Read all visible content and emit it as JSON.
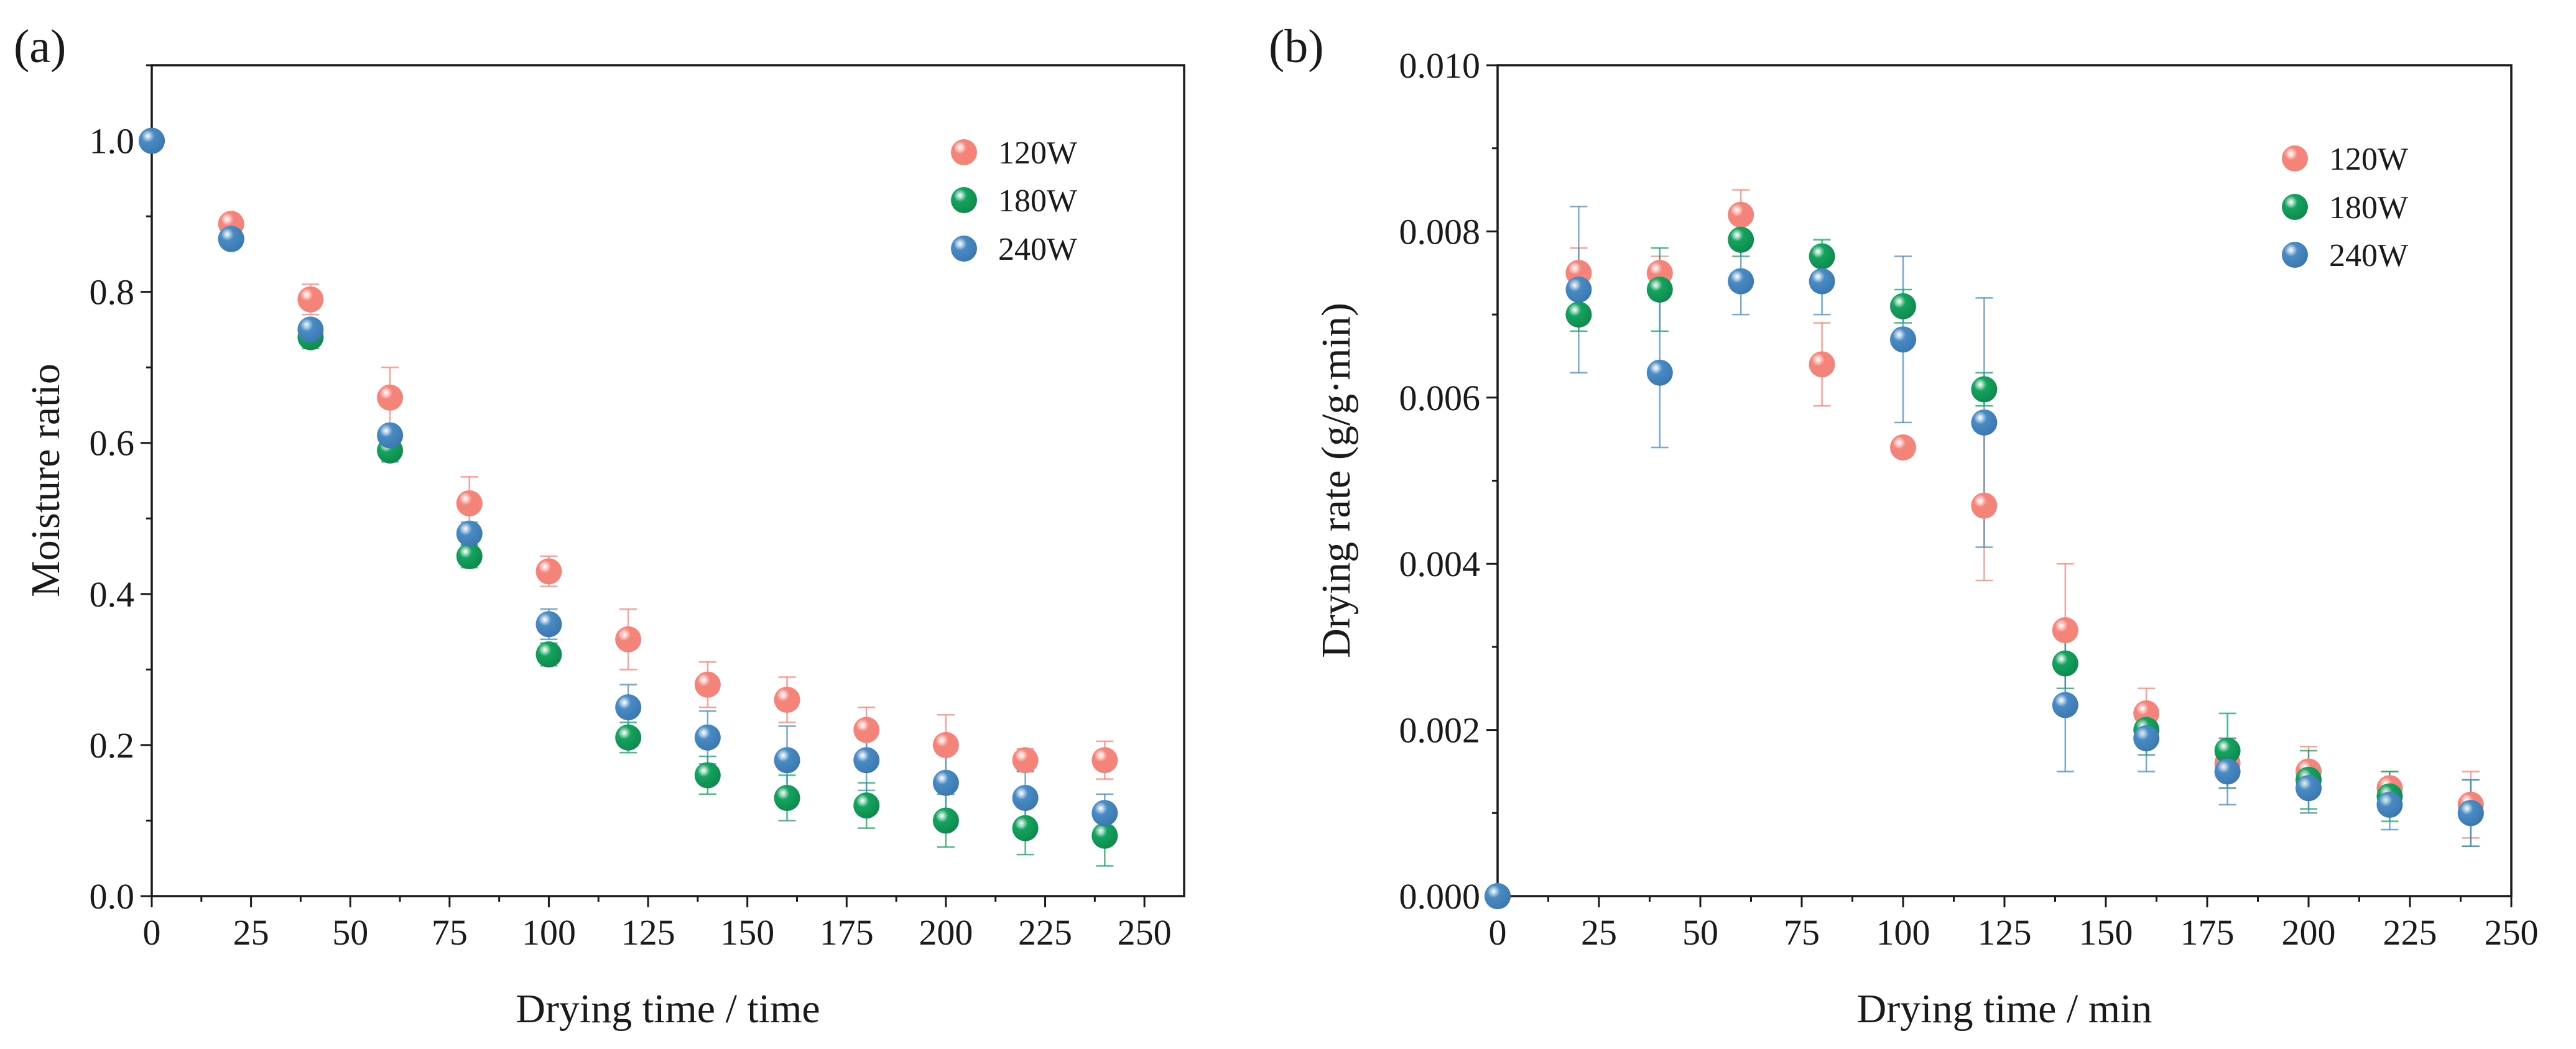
{
  "chart_data": [
    {
      "type": "scatter",
      "panel_label": "(a)",
      "title": "",
      "xlabel": "Drying time / time",
      "ylabel": "Moisture ratio",
      "xlim": [
        0,
        260
      ],
      "ylim": [
        0,
        1.1
      ],
      "xticks": [
        0,
        25,
        50,
        75,
        100,
        125,
        150,
        175,
        200,
        225,
        250
      ],
      "xtick_labels": [
        "0",
        "25",
        "50",
        "75",
        "100",
        "125",
        "150",
        "175",
        "200",
        "225",
        "250"
      ],
      "yticks": [
        0.0,
        0.2,
        0.4,
        0.6,
        0.8,
        1.0
      ],
      "ytick_labels": [
        "0.0",
        "0.2",
        "0.4",
        "0.6",
        "0.8",
        "1.0"
      ],
      "grid": false,
      "legend_position": "top-right",
      "series": [
        {
          "name": "120W",
          "color": "#f4847a",
          "x": [
            0,
            20,
            40,
            60,
            80,
            100,
            120,
            140,
            160,
            180,
            200,
            220,
            240
          ],
          "y": [
            1.0,
            0.89,
            0.79,
            0.66,
            0.52,
            0.43,
            0.34,
            0.28,
            0.26,
            0.22,
            0.2,
            0.18,
            0.18
          ],
          "err": [
            0,
            0.01,
            0.02,
            0.04,
            0.035,
            0.02,
            0.04,
            0.03,
            0.03,
            0.03,
            0.04,
            0.015,
            0.025
          ]
        },
        {
          "name": "180W",
          "color": "#14a35e",
          "x": [
            0,
            20,
            40,
            60,
            80,
            100,
            120,
            140,
            160,
            180,
            200,
            220,
            240
          ],
          "y": [
            1.0,
            0.87,
            0.74,
            0.59,
            0.45,
            0.32,
            0.21,
            0.16,
            0.13,
            0.12,
            0.1,
            0.09,
            0.08
          ],
          "err": [
            0,
            0.01,
            0.015,
            0.015,
            0.015,
            0.015,
            0.02,
            0.025,
            0.03,
            0.03,
            0.035,
            0.035,
            0.04
          ]
        },
        {
          "name": "240W",
          "color": "#4a8bc4",
          "x": [
            0,
            20,
            40,
            60,
            80,
            100,
            120,
            140,
            160,
            180,
            200,
            220,
            240
          ],
          "y": [
            1.0,
            0.87,
            0.75,
            0.61,
            0.48,
            0.36,
            0.25,
            0.21,
            0.18,
            0.18,
            0.15,
            0.13,
            0.11
          ],
          "err": [
            0,
            0.01,
            0.01,
            0.01,
            0.015,
            0.02,
            0.03,
            0.035,
            0.045,
            0.04,
            0.04,
            0.035,
            0.025
          ]
        }
      ]
    },
    {
      "type": "scatter",
      "panel_label": "(b)",
      "title": "",
      "xlabel": "Drying time / min",
      "ylabel": "Drying rate (g/g·min)",
      "xlim": [
        0,
        250
      ],
      "ylim": [
        0,
        0.01
      ],
      "xticks": [
        0,
        25,
        50,
        75,
        100,
        125,
        150,
        175,
        200,
        225,
        250
      ],
      "xtick_labels": [
        "0",
        "25",
        "50",
        "75",
        "100",
        "125",
        "150",
        "175",
        "200",
        "225",
        "250"
      ],
      "yticks": [
        0.0,
        0.002,
        0.004,
        0.006,
        0.008,
        0.01
      ],
      "ytick_labels": [
        "0.000",
        "0.002",
        "0.004",
        "0.006",
        "0.008",
        "0.010"
      ],
      "grid": false,
      "legend_position": "top-right",
      "series": [
        {
          "name": "120W",
          "color": "#f4847a",
          "x": [
            0,
            20,
            40,
            60,
            80,
            100,
            120,
            140,
            160,
            180,
            200,
            220,
            240
          ],
          "y": [
            0.0,
            0.0075,
            0.0075,
            0.0082,
            0.0064,
            0.0054,
            0.0047,
            0.0032,
            0.0022,
            0.0016,
            0.0015,
            0.0013,
            0.0011
          ],
          "err": [
            0,
            0.0003,
            0.0002,
            0.0003,
            0.0005,
            0.0001,
            0.0009,
            0.0008,
            0.0003,
            0.0003,
            0.0003,
            0.0002,
            0.0004
          ]
        },
        {
          "name": "180W",
          "color": "#14a35e",
          "x": [
            0,
            20,
            40,
            60,
            80,
            100,
            120,
            140,
            160,
            180,
            200,
            220,
            240
          ],
          "y": [
            0.0,
            0.007,
            0.0073,
            0.0079,
            0.0077,
            0.0071,
            0.0061,
            0.0028,
            0.002,
            0.00175,
            0.0014,
            0.0012,
            0.001
          ],
          "err": [
            0,
            0.0002,
            0.0005,
            0.0002,
            0.0002,
            0.0002,
            0.0002,
            0.0003,
            0.0003,
            0.00045,
            0.00035,
            0.0003,
            0.0004
          ]
        },
        {
          "name": "240W",
          "color": "#4a8bc4",
          "x": [
            0,
            20,
            40,
            60,
            80,
            100,
            120,
            140,
            160,
            180,
            200,
            220,
            240
          ],
          "y": [
            0.0,
            0.0073,
            0.0063,
            0.0074,
            0.0074,
            0.0067,
            0.0057,
            0.0023,
            0.0019,
            0.0015,
            0.0013,
            0.0011,
            0.001
          ],
          "err": [
            0,
            0.001,
            0.0009,
            0.0004,
            0.0004,
            0.001,
            0.0015,
            0.0008,
            0.0004,
            0.0004,
            0.0003,
            0.0003,
            0.0004
          ]
        }
      ]
    }
  ]
}
